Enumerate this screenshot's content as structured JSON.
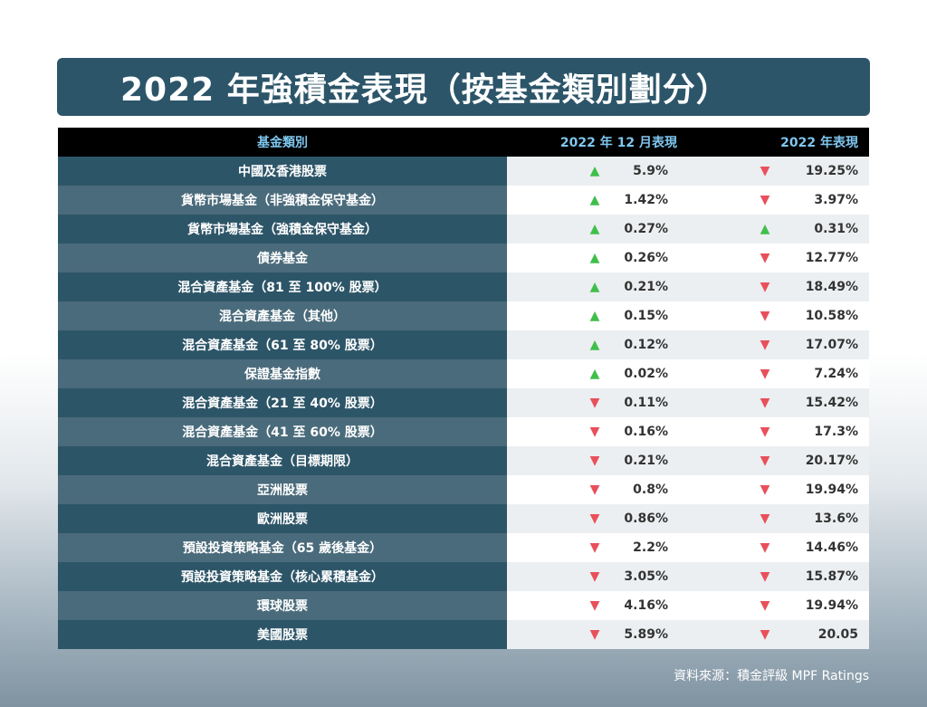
{
  "title": "2022 年強積金表現（按基金類別劃分）",
  "header": {
    "category": "基金類別",
    "december": "2022 年 12 月表現",
    "year": "2022 年表現"
  },
  "rows": [
    {
      "category": "中國及香港股票",
      "dec_dir": "up",
      "dec": "5.9%",
      "year_dir": "down",
      "year": "19.25%"
    },
    {
      "category": "貨幣市場基金（非強積金保守基金）",
      "dec_dir": "up",
      "dec": "1.42%",
      "year_dir": "down",
      "year": "3.97%"
    },
    {
      "category": "貨幣市場基金（強積金保守基金）",
      "dec_dir": "up",
      "dec": "0.27%",
      "year_dir": "up",
      "year": "0.31%"
    },
    {
      "category": "債券基金",
      "dec_dir": "up",
      "dec": "0.26%",
      "year_dir": "down",
      "year": "12.77%"
    },
    {
      "category": "混合資產基金（81 至 100% 股票）",
      "dec_dir": "up",
      "dec": "0.21%",
      "year_dir": "down",
      "year": "18.49%"
    },
    {
      "category": "混合資產基金（其他）",
      "dec_dir": "up",
      "dec": "0.15%",
      "year_dir": "down",
      "year": "10.58%"
    },
    {
      "category": "混合資產基金（61 至 80% 股票）",
      "dec_dir": "up",
      "dec": "0.12%",
      "year_dir": "down",
      "year": "17.07%"
    },
    {
      "category": "保證基金指數",
      "dec_dir": "up",
      "dec": "0.02%",
      "year_dir": "down",
      "year": "7.24%"
    },
    {
      "category": "混合資產基金（21 至 40% 股票）",
      "dec_dir": "down",
      "dec": "0.11%",
      "year_dir": "down",
      "year": "15.42%"
    },
    {
      "category": "混合資產基金（41 至 60% 股票）",
      "dec_dir": "down",
      "dec": "0.16%",
      "year_dir": "down",
      "year": "17.3%"
    },
    {
      "category": "混合資產基金（目標期限）",
      "dec_dir": "down",
      "dec": "0.21%",
      "year_dir": "down",
      "year": "20.17%"
    },
    {
      "category": "亞洲股票",
      "dec_dir": "down",
      "dec": "0.8%",
      "year_dir": "down",
      "year": "19.94%"
    },
    {
      "category": "歐洲股票",
      "dec_dir": "down",
      "dec": "0.86%",
      "year_dir": "down",
      "year": "13.6%"
    },
    {
      "category": "預設投資策略基金（65 歲後基金）",
      "dec_dir": "down",
      "dec": "2.2%",
      "year_dir": "down",
      "year": "14.46%"
    },
    {
      "category": "預設投資策略基金（核心累積基金）",
      "dec_dir": "down",
      "dec": "3.05%",
      "year_dir": "down",
      "year": "15.87%"
    },
    {
      "category": "環球股票",
      "dec_dir": "down",
      "dec": "4.16%",
      "year_dir": "down",
      "year": "19.94%"
    },
    {
      "category": "美國股票",
      "dec_dir": "down",
      "dec": "5.89%",
      "year_dir": "down",
      "year": "20.05"
    }
  ],
  "source": "資料來源：積金評級 MPF Ratings",
  "colors": {
    "title_bg": "#2c5569",
    "header_text": "#7fc6ee",
    "up": "#3fbf4a",
    "down": "#e8505b"
  },
  "icons": {
    "up": "triangle-up-icon",
    "down": "triangle-down-icon"
  }
}
